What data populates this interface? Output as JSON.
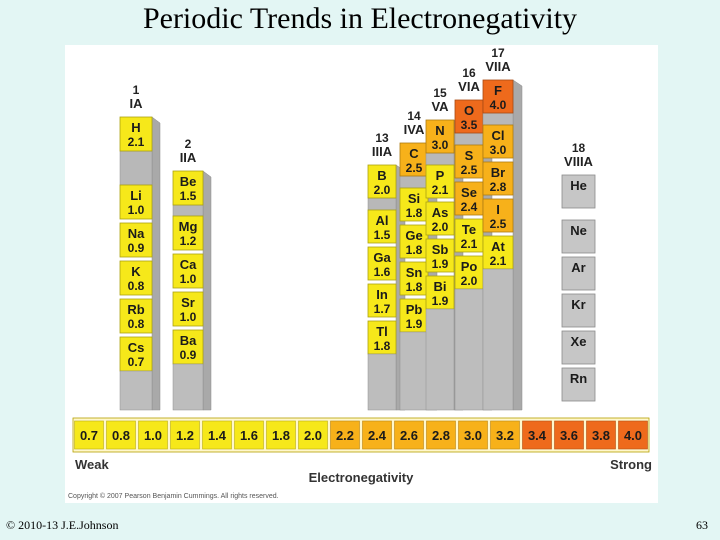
{
  "title": "Periodic Trends in Electronegativity",
  "footer": {
    "copyright": "© 2010-13 J.E.Johnson",
    "page": "63"
  },
  "figure": {
    "copyright": "Copyright © 2007 Pearson Benjamin Cummings. All rights reserved.",
    "scale_title": "Electronegativity",
    "weak_label": "Weak",
    "strong_label": "Strong",
    "scale_values": [
      "0.7",
      "0.8",
      "1.0",
      "1.2",
      "1.4",
      "1.6",
      "1.8",
      "2.0",
      "2.2",
      "2.4",
      "2.6",
      "2.8",
      "3.0",
      "3.2",
      "3.4",
      "3.6",
      "3.8",
      "4.0"
    ],
    "colors": {
      "low": "#f6e81a",
      "mid": "#f7b11a",
      "high": "#ee6a1c",
      "noble": "#c6c6c6"
    }
  },
  "groups": [
    {
      "num": "1",
      "name": "IA",
      "elements": [
        {
          "symbol": "H",
          "en": "2.1"
        },
        {
          "symbol": "Li",
          "en": "1.0"
        },
        {
          "symbol": "Na",
          "en": "0.9"
        },
        {
          "symbol": "K",
          "en": "0.8"
        },
        {
          "symbol": "Rb",
          "en": "0.8"
        },
        {
          "symbol": "Cs",
          "en": "0.7"
        }
      ]
    },
    {
      "num": "2",
      "name": "IIA",
      "elements": [
        {
          "symbol": "Be",
          "en": "1.5"
        },
        {
          "symbol": "Mg",
          "en": "1.2"
        },
        {
          "symbol": "Ca",
          "en": "1.0"
        },
        {
          "symbol": "Sr",
          "en": "1.0"
        },
        {
          "symbol": "Ba",
          "en": "0.9"
        }
      ]
    },
    {
      "num": "13",
      "name": "IIIA",
      "elements": [
        {
          "symbol": "B",
          "en": "2.0"
        },
        {
          "symbol": "Al",
          "en": "1.5"
        },
        {
          "symbol": "Ga",
          "en": "1.6"
        },
        {
          "symbol": "In",
          "en": "1.7"
        },
        {
          "symbol": "Tl",
          "en": "1.8"
        }
      ]
    },
    {
      "num": "14",
      "name": "IVA",
      "elements": [
        {
          "symbol": "C",
          "en": "2.5"
        },
        {
          "symbol": "Si",
          "en": "1.8"
        },
        {
          "symbol": "Ge",
          "en": "1.8"
        },
        {
          "symbol": "Sn",
          "en": "1.8"
        },
        {
          "symbol": "Pb",
          "en": "1.9"
        }
      ]
    },
    {
      "num": "15",
      "name": "VA",
      "elements": [
        {
          "symbol": "N",
          "en": "3.0"
        },
        {
          "symbol": "P",
          "en": "2.1"
        },
        {
          "symbol": "As",
          "en": "2.0"
        },
        {
          "symbol": "Sb",
          "en": "1.9"
        },
        {
          "symbol": "Bi",
          "en": "1.9"
        }
      ]
    },
    {
      "num": "16",
      "name": "VIA",
      "elements": [
        {
          "symbol": "O",
          "en": "3.5"
        },
        {
          "symbol": "S",
          "en": "2.5"
        },
        {
          "symbol": "Se",
          "en": "2.4"
        },
        {
          "symbol": "Te",
          "en": "2.1"
        },
        {
          "symbol": "Po",
          "en": "2.0"
        }
      ]
    },
    {
      "num": "17",
      "name": "VIIA",
      "elements": [
        {
          "symbol": "F",
          "en": "4.0"
        },
        {
          "symbol": "Cl",
          "en": "3.0"
        },
        {
          "symbol": "Br",
          "en": "2.8"
        },
        {
          "symbol": "I",
          "en": "2.5"
        },
        {
          "symbol": "At",
          "en": "2.1"
        }
      ]
    },
    {
      "num": "18",
      "name": "VIIIA",
      "elements": [
        {
          "symbol": "He",
          "en": ""
        },
        {
          "symbol": "Ne",
          "en": ""
        },
        {
          "symbol": "Ar",
          "en": ""
        },
        {
          "symbol": "Kr",
          "en": ""
        },
        {
          "symbol": "Xe",
          "en": ""
        },
        {
          "symbol": "Rn",
          "en": ""
        }
      ]
    }
  ]
}
